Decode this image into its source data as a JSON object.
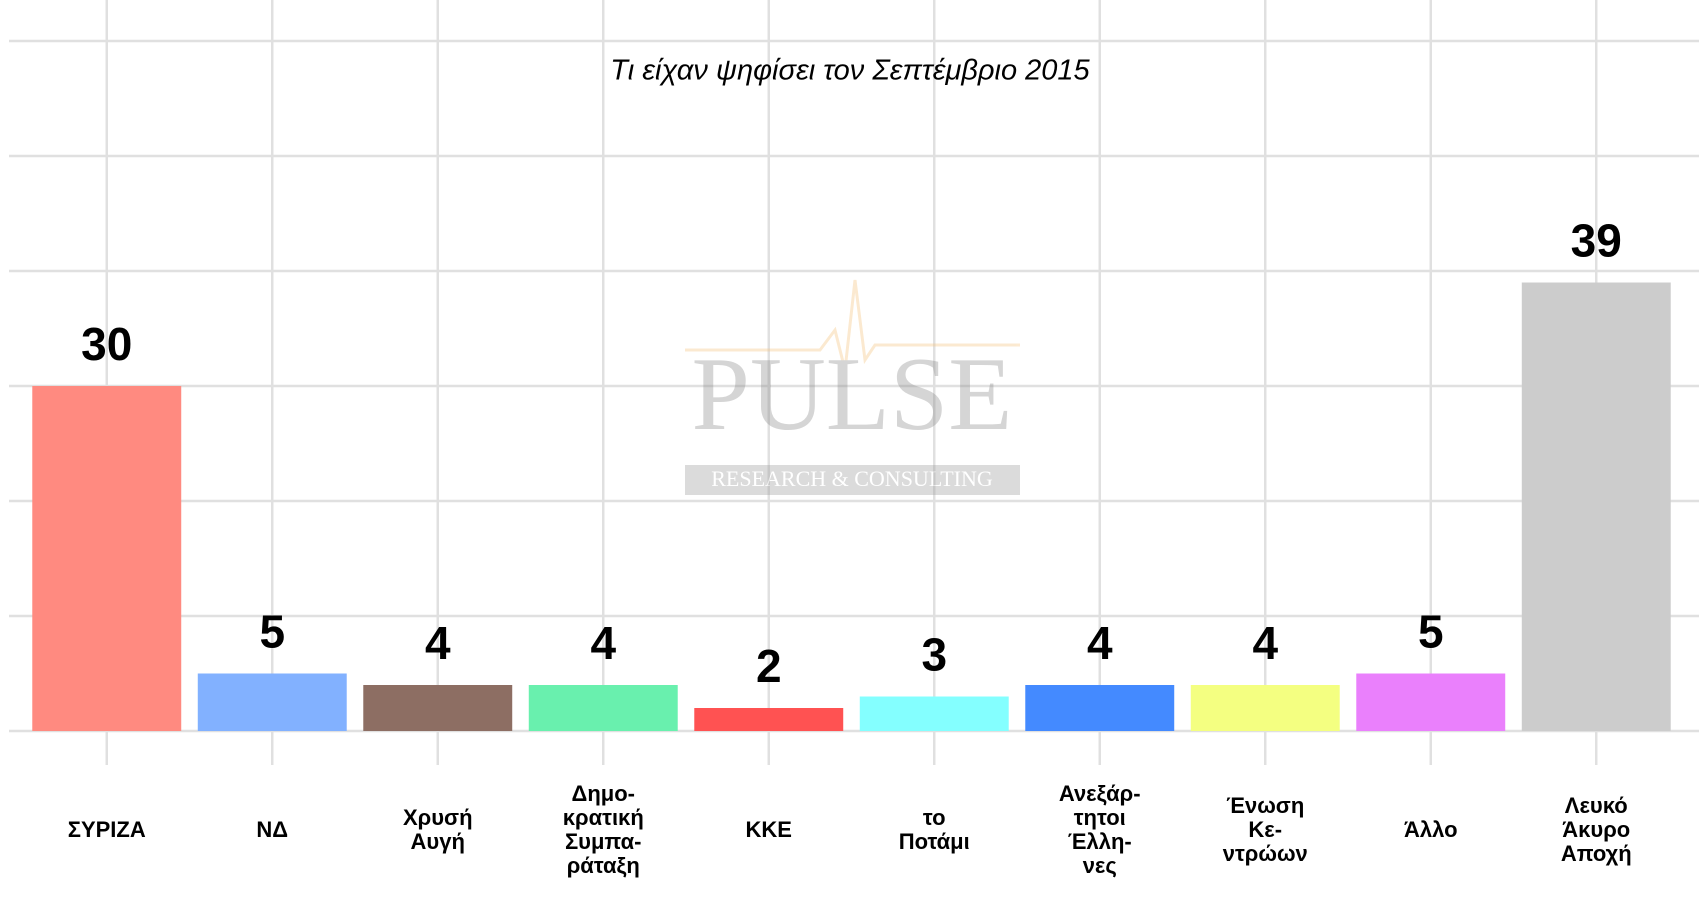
{
  "chart_data": {
    "type": "bar",
    "title": "Τι είχαν ψηφίσει τον Σεπτέμβριο 2015",
    "categories": [
      "ΣΥΡΙΖΑ",
      "ΝΔ",
      "Χρυσή\nΑυγή",
      "Δημο-\nκρατική\nΣυμπα-\nράταξη",
      "ΚΚΕ",
      "το\nΠοτάμι",
      "Ανεξάρ-\nτητοι\nΈλλη-\nνες",
      "Ένωση\nΚε-\nντρώων",
      "Άλλο",
      "Λευκό\nΆκυρο\nΑποχή"
    ],
    "values": [
      30,
      5,
      4,
      4,
      2,
      3,
      4,
      4,
      5,
      39
    ],
    "colors": [
      "#ff8a80",
      "#82b1ff",
      "#8d6e63",
      "#69f0ae",
      "#ff5252",
      "#84ffff",
      "#448aff",
      "#f4ff81",
      "#ea80fc",
      "#cccccc"
    ],
    "ylim": [
      0,
      60
    ],
    "yticks": [
      0,
      10,
      20,
      30,
      40,
      50,
      60
    ],
    "grid": true,
    "watermark": {
      "title": "PULSE",
      "subtitle": "Research & Consulting"
    }
  }
}
